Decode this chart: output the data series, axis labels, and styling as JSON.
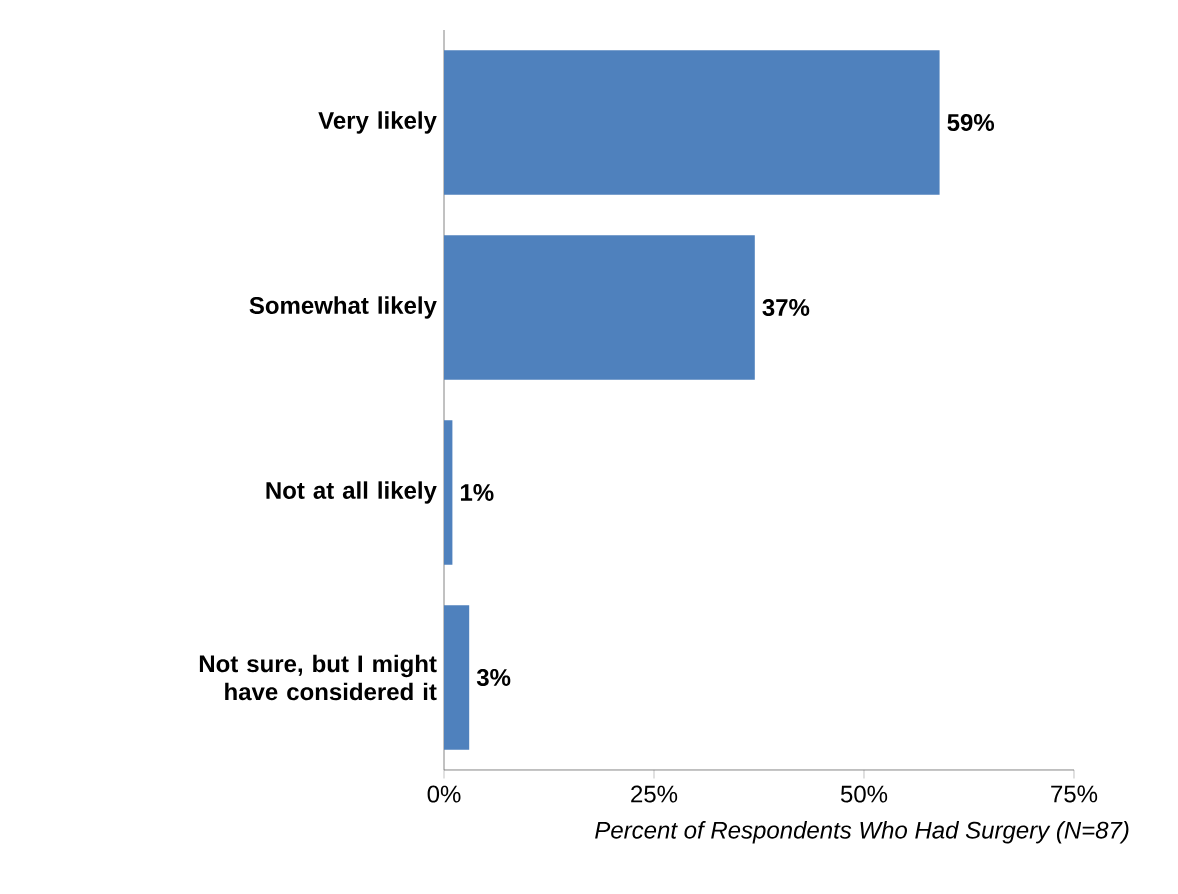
{
  "chart_data": {
    "type": "bar",
    "orientation": "horizontal",
    "categories": [
      "Very likely",
      "Somewhat likely",
      "Not at all likely",
      "Not sure, but I might have considered it"
    ],
    "values": [
      59,
      37,
      1,
      3
    ],
    "value_labels": [
      "59%",
      "37%",
      "1%",
      "3%"
    ],
    "color": "#4f81bd",
    "xlim": [
      0,
      75
    ],
    "xticks": [
      {
        "value": 0,
        "label": "0%"
      },
      {
        "value": 25,
        "label": "25%"
      },
      {
        "value": 50,
        "label": "50%"
      },
      {
        "value": 75,
        "label": "75%"
      }
    ],
    "xlabel": "Percent of Respondents Who Had Surgery (N=87)"
  }
}
